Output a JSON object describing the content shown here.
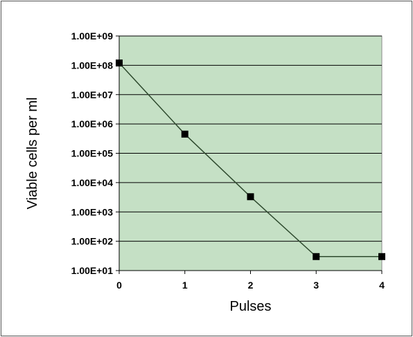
{
  "chart_data": {
    "type": "line",
    "title": "",
    "xlabel": "Pulses",
    "ylabel": "Viable cells per ml",
    "yscale": "log",
    "ylim": [
      10,
      1000000000
    ],
    "xlim": [
      0,
      4
    ],
    "x_ticks": [
      "0",
      "1",
      "2",
      "3",
      "4"
    ],
    "y_ticks": [
      "1.00E+01",
      "1.00E+02",
      "1.00E+03",
      "1.00E+04",
      "1.00E+05",
      "1.00E+06",
      "1.00E+07",
      "1.00E+08",
      "1.00E+09"
    ],
    "grid": "horizontal",
    "colors": {
      "plot_background": "#c5e0c5",
      "line": "#2e4a2e",
      "marker": "#000000",
      "gridline": "#000000"
    },
    "series": [
      {
        "x": [
          0,
          1,
          2,
          3,
          4
        ],
        "y": [
          120000000,
          450000,
          3300,
          30,
          30
        ]
      }
    ]
  }
}
